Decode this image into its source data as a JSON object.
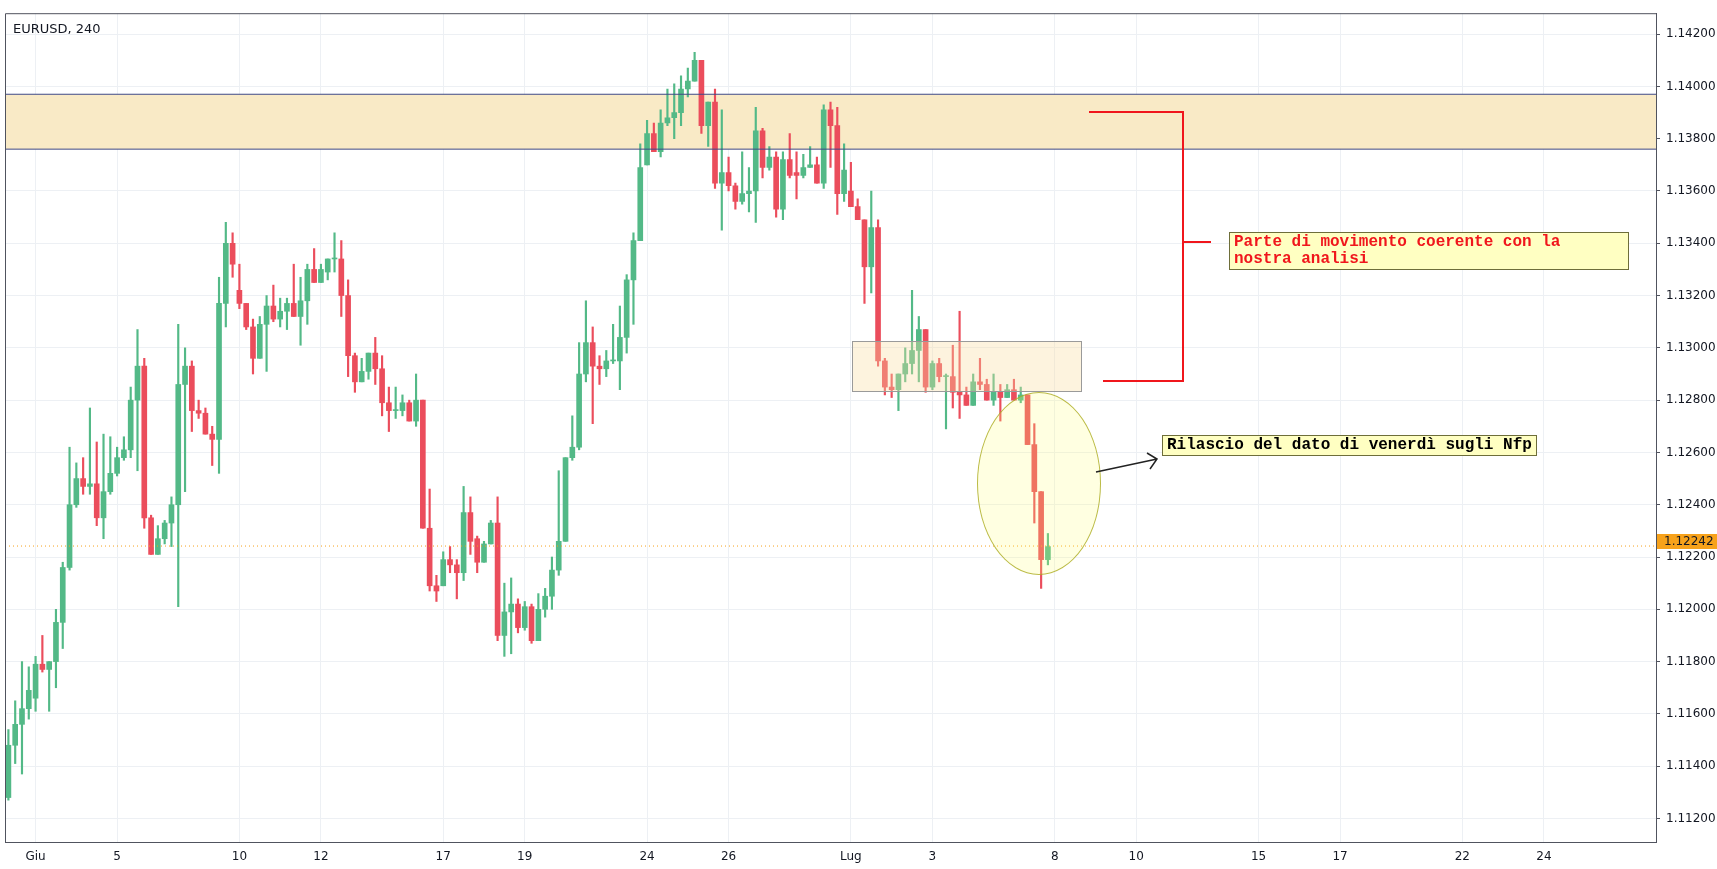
{
  "chart_data": {
    "type": "candlestick",
    "title": "EURUSD, 240",
    "categories": [
      null,
      null,
      null,
      null,
      "Giu",
      null,
      null,
      null,
      null,
      null,
      null,
      null,
      null,
      null,
      null,
      null,
      "5",
      null,
      null,
      null,
      null,
      null,
      null,
      null,
      null,
      null,
      null,
      null,
      null,
      null,
      null,
      null,
      null,
      null,
      "10",
      null,
      null,
      null,
      null,
      null,
      null,
      null,
      null,
      null,
      null,
      null,
      "12",
      null,
      null,
      null,
      null,
      null,
      null,
      null,
      null,
      null,
      null,
      null,
      null,
      null,
      null,
      null,
      null,
      null,
      "17",
      null,
      null,
      null,
      null,
      null,
      null,
      null,
      null,
      null,
      null,
      null,
      "19",
      null,
      null,
      null,
      null,
      null,
      null,
      null,
      null,
      null,
      null,
      null,
      null,
      null,
      null,
      null,
      null,
      null,
      "24",
      null,
      null,
      null,
      null,
      null,
      null,
      null,
      null,
      null,
      null,
      null,
      "26",
      null,
      null,
      null,
      null,
      null,
      null,
      null,
      null,
      null,
      null,
      null,
      null,
      null,
      null,
      null,
      null,
      null,
      "Lug",
      null,
      null,
      null,
      null,
      null,
      null,
      null,
      null,
      null,
      null,
      null,
      "3",
      null,
      null,
      null,
      null,
      null,
      null,
      null,
      null,
      null,
      null,
      null,
      null,
      null,
      null,
      null,
      null,
      null,
      "8",
      null,
      null,
      null,
      null,
      null,
      null,
      null,
      null,
      null,
      null,
      null,
      "10",
      null,
      null,
      null,
      null,
      null,
      null,
      null,
      null,
      null,
      null,
      null,
      null,
      null,
      null,
      null,
      null,
      null,
      "15",
      null,
      null,
      null,
      null,
      null,
      null,
      null,
      null,
      null,
      null,
      null,
      "17",
      null,
      null,
      null,
      null,
      null,
      null,
      null,
      null,
      null,
      null,
      null,
      null,
      null,
      null,
      null,
      null,
      null,
      "22",
      null,
      null,
      null,
      null,
      null,
      null,
      null,
      null,
      null,
      null,
      null,
      "24",
      null,
      null,
      null,
      null,
      null,
      null,
      null,
      null,
      null,
      null,
      null,
      null,
      null,
      null,
      null,
      null
    ],
    "ohlc": [
      [
        1.1128,
        1.1154,
        1.1127,
        1.1148
      ],
      [
        1.1148,
        1.1165,
        1.1141,
        1.1156
      ],
      [
        1.1156,
        1.118,
        1.1137,
        1.1162
      ],
      [
        1.1162,
        1.1178,
        1.1158,
        1.1169
      ],
      [
        1.1166,
        1.1182,
        1.1161,
        1.1179
      ],
      [
        1.1179,
        1.119,
        1.1176,
        1.1177
      ],
      [
        1.1177,
        1.118,
        1.1161,
        1.118
      ],
      [
        1.118,
        1.12,
        1.117,
        1.1195
      ],
      [
        1.1195,
        1.1218,
        1.1185,
        1.1216
      ],
      [
        1.1216,
        1.1262,
        1.1215,
        1.124
      ],
      [
        1.124,
        1.1256,
        1.1239,
        1.125
      ],
      [
        1.125,
        1.1258,
        1.1244,
        1.1247
      ],
      [
        1.1247,
        1.1277,
        1.1244,
        1.1248
      ],
      [
        1.1248,
        1.1264,
        1.1232,
        1.1235
      ],
      [
        1.1235,
        1.1267,
        1.1227,
        1.1245
      ],
      [
        1.1245,
        1.1266,
        1.1244,
        1.1252
      ],
      [
        1.1252,
        1.1262,
        1.1251,
        1.1258
      ],
      [
        1.1258,
        1.1266,
        1.1257,
        1.1261
      ],
      [
        1.1261,
        1.1285,
        1.1258,
        1.128
      ],
      [
        1.128,
        1.1307,
        1.1253,
        1.1293
      ],
      [
        1.1293,
        1.1296,
        1.1231,
        1.1235
      ],
      [
        1.1235,
        1.1236,
        1.1221,
        1.1221
      ],
      [
        1.1221,
        1.1232,
        1.1221,
        1.1227
      ],
      [
        1.1227,
        1.1234,
        1.1225,
        1.1233
      ],
      [
        1.1233,
        1.1243,
        1.1224,
        1.124
      ],
      [
        1.124,
        1.1309,
        1.1201,
        1.1286
      ],
      [
        1.1286,
        1.13,
        1.1245,
        1.1293
      ],
      [
        1.1293,
        1.1295,
        1.1268,
        1.1276
      ],
      [
        1.1276,
        1.128,
        1.1273,
        1.1275
      ],
      [
        1.1275,
        1.1277,
        1.1267,
        1.1267
      ],
      [
        1.1267,
        1.127,
        1.1255,
        1.1265
      ],
      [
        1.1265,
        1.1327,
        1.1252,
        1.1317
      ],
      [
        1.1317,
        1.1348,
        1.1308,
        1.134
      ],
      [
        1.134,
        1.1344,
        1.1327,
        1.1332
      ],
      [
        1.1322,
        1.1332,
        1.1315,
        1.1317
      ],
      [
        1.1317,
        1.1317,
        1.1307,
        1.1308
      ],
      [
        1.1308,
        1.1311,
        1.129,
        1.1296
      ],
      [
        1.1296,
        1.1312,
        1.1296,
        1.1309
      ],
      [
        1.1309,
        1.132,
        1.1291,
        1.1316
      ],
      [
        1.1316,
        1.1324,
        1.131,
        1.1311
      ],
      [
        1.1311,
        1.1319,
        1.1308,
        1.1314
      ],
      [
        1.1314,
        1.1319,
        1.1307,
        1.1317
      ],
      [
        1.1317,
        1.1332,
        1.1312,
        1.1312
      ],
      [
        1.1312,
        1.1327,
        1.1301,
        1.1318
      ],
      [
        1.1318,
        1.1332,
        1.1309,
        1.133
      ],
      [
        1.133,
        1.1338,
        1.1325,
        1.1325
      ],
      [
        1.1325,
        1.1332,
        1.1325,
        1.133
      ],
      [
        1.1329,
        1.1334,
        1.1326,
        1.1334
      ],
      [
        1.1334,
        1.1344,
        1.1329,
        1.1334
      ],
      [
        1.1334,
        1.1341,
        1.1312,
        1.132
      ],
      [
        1.132,
        1.1326,
        1.1289,
        1.1297
      ],
      [
        1.1297,
        1.1298,
        1.1283,
        1.1287
      ],
      [
        1.1287,
        1.1296,
        1.1287,
        1.1291
      ],
      [
        1.1291,
        1.1298,
        1.1288,
        1.1298
      ],
      [
        1.1298,
        1.1304,
        1.1286,
        1.1292
      ],
      [
        1.1292,
        1.1297,
        1.1274,
        1.1279
      ],
      [
        1.1279,
        1.1285,
        1.1268,
        1.1276
      ],
      [
        1.1276,
        1.1285,
        1.1273,
        1.1276
      ],
      [
        1.1276,
        1.1282,
        1.1274,
        1.1279
      ],
      [
        1.1279,
        1.128,
        1.1272,
        1.1272
      ],
      [
        1.1272,
        1.129,
        1.127,
        1.128
      ],
      [
        1.128,
        1.128,
        1.1231,
        1.1231
      ],
      [
        1.1231,
        1.1246,
        1.1207,
        1.1209
      ],
      [
        1.1209,
        1.1213,
        1.1203,
        1.1207
      ],
      [
        1.1209,
        1.1222,
        1.1209,
        1.1219
      ],
      [
        1.1219,
        1.1224,
        1.1214,
        1.1217
      ],
      [
        1.1217,
        1.1219,
        1.1204,
        1.1214
      ],
      [
        1.1214,
        1.1247,
        1.1211,
        1.1237
      ],
      [
        1.1237,
        1.1243,
        1.1221,
        1.1226
      ],
      [
        1.1227,
        1.1228,
        1.1214,
        1.1218
      ],
      [
        1.1218,
        1.1226,
        1.1218,
        1.1225
      ],
      [
        1.1225,
        1.1234,
        1.1225,
        1.1233
      ],
      [
        1.1233,
        1.1243,
        1.1188,
        1.119
      ],
      [
        1.119,
        1.121,
        1.1182,
        1.1199
      ],
      [
        1.1199,
        1.1212,
        1.1183,
        1.1202
      ],
      [
        1.1202,
        1.1204,
        1.1191,
        1.1193
      ],
      [
        1.1193,
        1.1203,
        1.1192,
        1.1201
      ],
      [
        1.1201,
        1.1202,
        1.1187,
        1.1188
      ],
      [
        1.1188,
        1.1206,
        1.1188,
        1.12
      ],
      [
        1.12,
        1.1208,
        1.1197,
        1.1205
      ],
      [
        1.1205,
        1.122,
        1.12,
        1.1215
      ],
      [
        1.1215,
        1.1253,
        1.1213,
        1.1226
      ],
      [
        1.1226,
        1.1258,
        1.1226,
        1.1258
      ],
      [
        1.1258,
        1.1274,
        1.1257,
        1.1262
      ],
      [
        1.1262,
        1.1302,
        1.1261,
        1.129
      ],
      [
        1.129,
        1.1318,
        1.1287,
        1.1302
      ],
      [
        1.1302,
        1.1308,
        1.1271,
        1.1293
      ],
      [
        1.1293,
        1.1297,
        1.1286,
        1.1292
      ],
      [
        1.1292,
        1.1299,
        1.1289,
        1.1295
      ],
      [
        1.1295,
        1.1309,
        1.1294,
        1.1295
      ],
      [
        1.1295,
        1.1316,
        1.1284,
        1.1304
      ],
      [
        1.1304,
        1.1328,
        1.1298,
        1.1326
      ],
      [
        1.1326,
        1.1344,
        1.1309,
        1.1341
      ],
      [
        1.1341,
        1.1378,
        1.1341,
        1.1369
      ],
      [
        1.137,
        1.1387,
        1.137,
        1.1382
      ],
      [
        1.1382,
        1.1386,
        1.1375,
        1.1375
      ],
      [
        1.1375,
        1.1391,
        1.1373,
        1.1386
      ],
      [
        1.1386,
        1.1399,
        1.1385,
        1.1388
      ],
      [
        1.1388,
        1.1401,
        1.138,
        1.139
      ],
      [
        1.139,
        1.1404,
        1.1385,
        1.1399
      ],
      [
        1.1399,
        1.1407,
        1.1396,
        1.1402
      ],
      [
        1.1402,
        1.1413,
        1.1402,
        1.141
      ],
      [
        1.141,
        1.141,
        1.1382,
        1.1385
      ],
      [
        1.1385,
        1.1394,
        1.1377,
        1.1394
      ],
      [
        1.1394,
        1.1399,
        1.1361,
        1.1363
      ],
      [
        1.1363,
        1.1391,
        1.1345,
        1.1367
      ],
      [
        1.1367,
        1.1373,
        1.136,
        1.1362
      ],
      [
        1.1362,
        1.1363,
        1.1353,
        1.1356
      ],
      [
        1.1356,
        1.1375,
        1.1355,
        1.1359
      ],
      [
        1.1359,
        1.1369,
        1.1352,
        1.136
      ],
      [
        1.136,
        1.1392,
        1.1348,
        1.1383
      ],
      [
        1.1383,
        1.1384,
        1.1365,
        1.1369
      ],
      [
        1.1369,
        1.1377,
        1.1368,
        1.1373
      ],
      [
        1.1373,
        1.1375,
        1.135,
        1.1353
      ],
      [
        1.1353,
        1.1375,
        1.1349,
        1.1372
      ],
      [
        1.1372,
        1.1382,
        1.1365,
        1.1366
      ],
      [
        1.1367,
        1.1375,
        1.1357,
        1.1366
      ],
      [
        1.1366,
        1.1374,
        1.1365,
        1.1369
      ],
      [
        1.1369,
        1.1377,
        1.1369,
        1.137
      ],
      [
        1.137,
        1.1373,
        1.1363,
        1.1363
      ],
      [
        1.1363,
        1.1393,
        1.1361,
        1.1391
      ],
      [
        1.1391,
        1.1394,
        1.1369,
        1.1385
      ],
      [
        1.1385,
        1.1392,
        1.1351,
        1.1359
      ],
      [
        1.1359,
        1.1378,
        1.1356,
        1.1368
      ],
      [
        1.136,
        1.1371,
        1.1354,
        1.1354
      ],
      [
        1.1354,
        1.1357,
        1.1349,
        1.1349
      ],
      [
        1.1349,
        1.1349,
        1.1317,
        1.1331
      ],
      [
        1.1331,
        1.136,
        1.1321,
        1.1346
      ],
      [
        1.1346,
        1.1349,
        1.1293,
        1.1295
      ],
      [
        1.1295,
        1.1296,
        1.1282,
        1.1285
      ],
      [
        1.1285,
        1.129,
        1.1281,
        1.1284
      ],
      [
        1.1284,
        1.129,
        1.1276,
        1.129
      ],
      [
        1.129,
        1.13,
        1.1287,
        1.1294
      ],
      [
        1.1294,
        1.1322,
        1.129,
        1.1299
      ],
      [
        1.1299,
        1.1312,
        1.1287,
        1.1307
      ],
      [
        1.1307,
        1.1307,
        1.1283,
        1.1285
      ],
      [
        1.1285,
        1.1295,
        1.1284,
        1.1294
      ],
      [
        1.1294,
        1.1296,
        1.1287,
        1.1289
      ],
      [
        1.1289,
        1.129,
        1.1269,
        1.1289
      ],
      [
        1.1289,
        1.1301,
        1.1277,
        1.1283
      ],
      [
        1.1283,
        1.1314,
        1.1273,
        1.1282
      ],
      [
        1.1282,
        1.1285,
        1.1278,
        1.1278
      ],
      [
        1.1278,
        1.129,
        1.1278,
        1.1287
      ],
      [
        1.1287,
        1.1296,
        1.1284,
        1.1286
      ],
      [
        1.1286,
        1.1288,
        1.128,
        1.128
      ],
      [
        1.128,
        1.129,
        1.1278,
        1.1283
      ],
      [
        1.1283,
        1.1286,
        1.1272,
        1.1281
      ],
      [
        1.1281,
        1.1286,
        1.1281,
        1.1284
      ],
      [
        1.1284,
        1.1288,
        1.128,
        1.128
      ],
      [
        1.128,
        1.1285,
        1.1279,
        1.1282
      ],
      [
        1.1282,
        1.1282,
        1.1263,
        1.1263
      ],
      [
        1.1263,
        1.1271,
        1.1233,
        1.1245
      ],
      [
        1.1245,
        1.1245,
        1.1208,
        1.1219
      ],
      [
        1.1219,
        1.1229,
        1.1217,
        1.1224
      ],
      null,
      null,
      null,
      null,
      null,
      null,
      null,
      null,
      null,
      null,
      null,
      null,
      null,
      null,
      null,
      null,
      null,
      null,
      null,
      null,
      null,
      null,
      null,
      null,
      null,
      null,
      null,
      null,
      null,
      null,
      null,
      null,
      null,
      null,
      null,
      null,
      null,
      null,
      null,
      null,
      null,
      null,
      null,
      null,
      null,
      null,
      null,
      null,
      null,
      null,
      null,
      null,
      null,
      null,
      null,
      null,
      null,
      null,
      null,
      null,
      null,
      null,
      null,
      null,
      null,
      null,
      null,
      null,
      null,
      null,
      null,
      null,
      null,
      null,
      null,
      null,
      null,
      null,
      null,
      null,
      null,
      null,
      null,
      null,
      null,
      null,
      null,
      null,
      null
    ],
    "ylim": [
      1.1111,
      1.1428
    ],
    "yticks": [
      {
        "value": 1.112,
        "label": "1.11200"
      },
      {
        "value": 1.114,
        "label": "1.11400"
      },
      {
        "value": 1.116,
        "label": "1.11600"
      },
      {
        "value": 1.118,
        "label": "1.11800"
      },
      {
        "value": 1.12,
        "label": "1.12000"
      },
      {
        "value": 1.122,
        "label": "1.12200"
      },
      {
        "value": 1.124,
        "label": "1.12400"
      },
      {
        "value": 1.126,
        "label": "1.12600"
      },
      {
        "value": 1.128,
        "label": "1.12800"
      },
      {
        "value": 1.13,
        "label": "1.13000"
      },
      {
        "value": 1.132,
        "label": "1.13200"
      },
      {
        "value": 1.134,
        "label": "1.13400"
      },
      {
        "value": 1.136,
        "label": "1.13600"
      },
      {
        "value": 1.138,
        "label": "1.13800"
      },
      {
        "value": 1.14,
        "label": "1.14000"
      },
      {
        "value": 1.142,
        "label": "1.14200"
      }
    ],
    "ref_lines": [
      {
        "axis": "y",
        "value": 1.12242,
        "label": "1.12242",
        "color": "#f7a21b",
        "line_style": "dotted"
      },
      {
        "axis": "y",
        "value": 1.1397,
        "color": "#3f4a86",
        "line_style": "solid"
      },
      {
        "axis": "y",
        "value": 1.1376,
        "color": "#3f4a86",
        "line_style": "solid"
      }
    ],
    "bands": [
      {
        "axis": "y",
        "from": 1.1376,
        "to": 1.1397,
        "color": "#f9eac6"
      }
    ],
    "annotations": [
      "Parte di movimento coerente con la nostra analisi",
      "Rilascio del dato di venerdì sugli Nfp"
    ],
    "grid": true,
    "legend": false
  }
}
